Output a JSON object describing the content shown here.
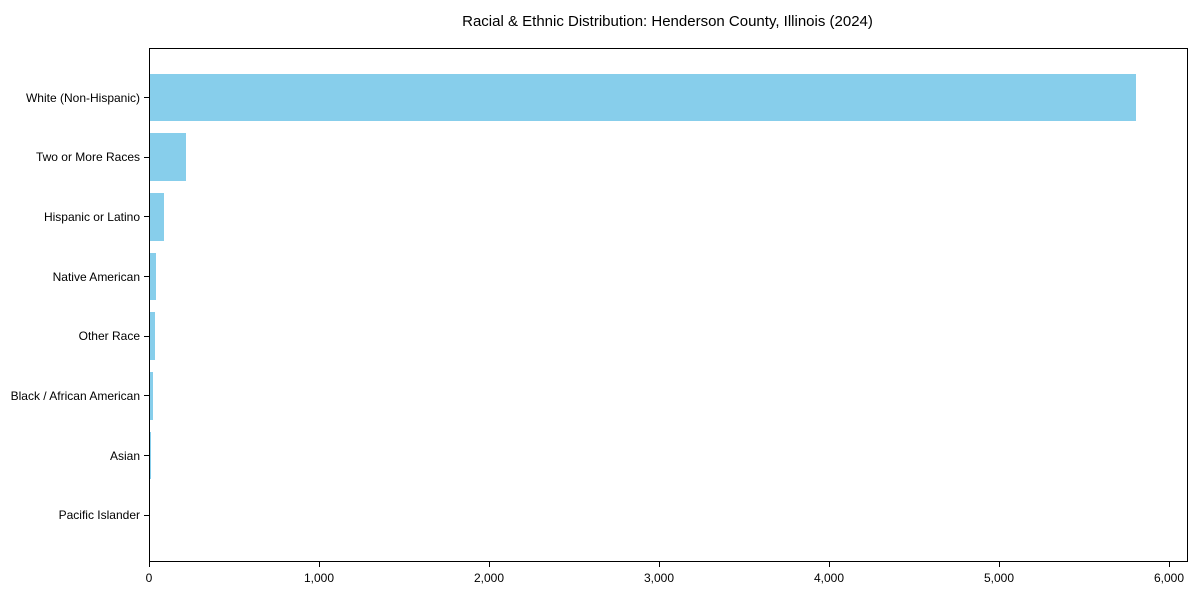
{
  "title": "Racial & Ethnic Distribution: Henderson County, Illinois (2024)",
  "colors": {
    "bar": "#87CEEB",
    "spine": "#000000",
    "text": "#000000",
    "background": "#FFFFFF"
  },
  "chart_data": {
    "type": "bar",
    "orientation": "horizontal",
    "title": "Racial & Ethnic Distribution: Henderson County, Illinois (2024)",
    "categories": [
      "White (Non-Hispanic)",
      "Two or More Races",
      "Hispanic or Latino",
      "Native American",
      "Other Race",
      "Black / African American",
      "Asian",
      "Pacific Islander"
    ],
    "values": [
      5800,
      210,
      80,
      35,
      30,
      20,
      5,
      0
    ],
    "xlabel": "",
    "ylabel": "",
    "xlim": [
      0,
      6100
    ],
    "xticks": [
      0,
      1000,
      2000,
      3000,
      4000,
      5000,
      6000
    ],
    "xtick_labels": [
      "0",
      "1,000",
      "2,000",
      "3,000",
      "4,000",
      "5,000",
      "6,000"
    ],
    "grid": false,
    "legend": null,
    "bar_color": "#87CEEB"
  }
}
